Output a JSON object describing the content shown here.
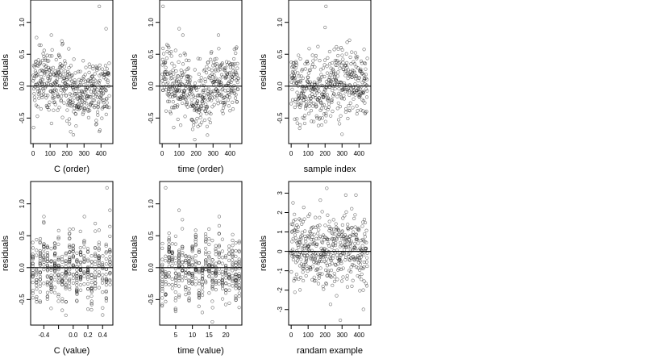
{
  "chart_data": [
    {
      "type": "scatter",
      "xlabel": "C (order)",
      "ylabel": "residuals",
      "xlim": [
        -15,
        470
      ],
      "ylim": [
        -0.9,
        1.35
      ],
      "xticks": [
        0,
        100,
        200,
        300,
        400
      ],
      "yticks": [
        -0.5,
        0,
        0.5,
        1
      ],
      "ytick_labels": [
        "-0.5",
        "0.0",
        "0.5",
        "1.0"
      ],
      "reference_line": 0,
      "pattern": "order",
      "n_points": 450,
      "outliers": [
        {
          "x": 390,
          "y": 1.25
        },
        {
          "x": 430,
          "y": 0.9
        }
      ]
    },
    {
      "type": "scatter",
      "xlabel": "time (order)",
      "ylabel": "residuals",
      "xlim": [
        -15,
        470
      ],
      "ylim": [
        -0.9,
        1.35
      ],
      "xticks": [
        0,
        100,
        200,
        300,
        400
      ],
      "yticks": [
        -0.5,
        0,
        0.5,
        1
      ],
      "ytick_labels": [
        "-0.5",
        "0.0",
        "0.5",
        "1.0"
      ],
      "reference_line": 0,
      "pattern": "order",
      "n_points": 450,
      "outliers": [
        {
          "x": 5,
          "y": 1.25
        },
        {
          "x": 100,
          "y": 0.9
        }
      ]
    },
    {
      "type": "scatter",
      "xlabel": "sample index",
      "ylabel": "residuals",
      "xlim": [
        -15,
        470
      ],
      "ylim": [
        -0.9,
        1.35
      ],
      "xticks": [
        0,
        100,
        200,
        300,
        400
      ],
      "yticks": [
        -0.5,
        0,
        0.5,
        1
      ],
      "ytick_labels": [
        "-0.5",
        "0.0",
        "0.5",
        "1.0"
      ],
      "reference_line": 0,
      "pattern": "order",
      "n_points": 450,
      "outliers": [
        {
          "x": 205,
          "y": 1.25
        },
        {
          "x": 200,
          "y": 0.92
        }
      ]
    },
    {
      "type": "scatter",
      "xlabel": "C (value)",
      "ylabel": "residuals",
      "xlim": [
        -0.58,
        0.54
      ],
      "ylim": [
        -0.9,
        1.35
      ],
      "xticks": [
        -0.4,
        -0.2,
        0,
        0.2,
        0.4
      ],
      "xtick_labels": [
        "-0.4",
        "",
        "0.0",
        "0.2",
        "0.4"
      ],
      "yticks": [
        -0.5,
        0,
        0.5,
        1
      ],
      "ytick_labels": [
        "-0.5",
        "0.0",
        "0.5",
        "1.0"
      ],
      "reference_line": 0,
      "pattern": "columns",
      "x_levels": [
        -0.55,
        -0.5,
        -0.45,
        -0.4,
        -0.35,
        -0.3,
        -0.25,
        -0.2,
        -0.15,
        -0.1,
        -0.05,
        0,
        0.05,
        0.1,
        0.15,
        0.2,
        0.25,
        0.3,
        0.35,
        0.4,
        0.45,
        0.5
      ],
      "n_points": 450,
      "outliers": [
        {
          "x": 0.46,
          "y": 1.25
        },
        {
          "x": 0.5,
          "y": 0.9
        }
      ]
    },
    {
      "type": "scatter",
      "xlabel": "time (value)",
      "ylabel": "residuals",
      "xlim": [
        0.2,
        24.8
      ],
      "ylim": [
        -0.9,
        1.35
      ],
      "xticks": [
        5,
        10,
        15,
        20
      ],
      "yticks": [
        -0.5,
        0,
        0.5,
        1
      ],
      "ytick_labels": [
        "-0.5",
        "0.0",
        "0.5",
        "1.0"
      ],
      "reference_line": 0,
      "pattern": "columns",
      "x_levels": [
        1,
        2,
        3,
        4,
        5,
        6,
        7,
        8,
        9,
        10,
        11,
        12,
        13,
        14,
        15,
        16,
        17,
        18,
        19,
        20,
        21,
        22,
        23,
        24
      ],
      "n_points": 450,
      "outliers": [
        {
          "x": 2,
          "y": 1.25
        },
        {
          "x": 6,
          "y": 0.9
        }
      ]
    },
    {
      "type": "scatter",
      "xlabel": "randam example",
      "ylabel": "residuals",
      "xlim": [
        -15,
        470
      ],
      "ylim": [
        -3.8,
        3.6
      ],
      "xticks": [
        0,
        100,
        200,
        300,
        400
      ],
      "yticks": [
        -3,
        -2,
        -1,
        0,
        1,
        2,
        3
      ],
      "reference_line": 0,
      "pattern": "random",
      "n_points": 450,
      "outliers": [
        {
          "x": 210,
          "y": 3.25
        },
        {
          "x": 290,
          "y": -3.55
        }
      ]
    }
  ]
}
